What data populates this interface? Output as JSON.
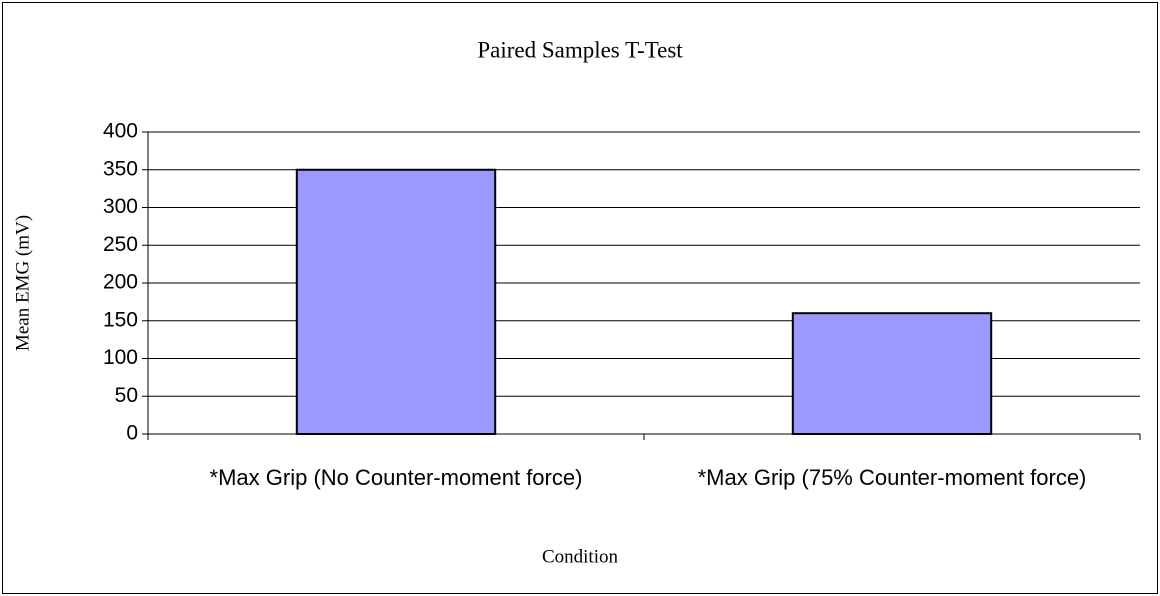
{
  "chart_data": {
    "type": "bar",
    "title": "Paired Samples T-Test",
    "x_label": "Condition",
    "y_label": "Mean EMG (mV)",
    "categories": [
      "*Max Grip (No Counter-moment force)",
      "*Max Grip (75% Counter-moment force)"
    ],
    "values": [
      350,
      160
    ],
    "color": "#9999ff",
    "ylim": [
      0,
      400
    ],
    "yticks": [
      0,
      50,
      100,
      150,
      200,
      250,
      300,
      350,
      400
    ],
    "grid": true
  }
}
